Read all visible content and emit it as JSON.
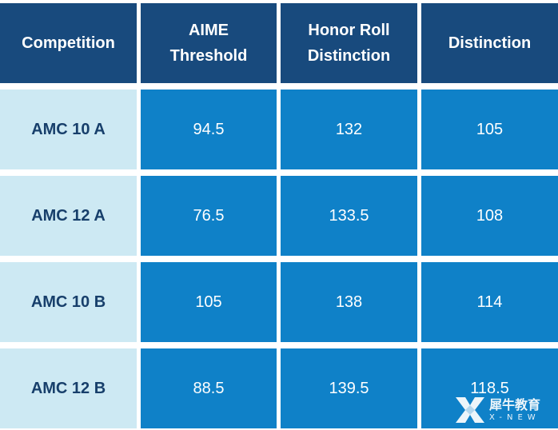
{
  "table": {
    "headers": [
      "Competition",
      "AIME\nThreshold",
      "Honor Roll\nDistinction",
      "Distinction"
    ],
    "rows": [
      {
        "competition": "AMC 10 A",
        "aime_threshold": "94.5",
        "honor_roll_distinction": "132",
        "distinction": "105"
      },
      {
        "competition": "AMC 12 A",
        "aime_threshold": "76.5",
        "honor_roll_distinction": "133.5",
        "distinction": "108"
      },
      {
        "competition": "AMC 10 B",
        "aime_threshold": "105",
        "honor_roll_distinction": "138",
        "distinction": "114"
      },
      {
        "competition": "AMC 12 B",
        "aime_threshold": "88.5",
        "honor_roll_distinction": "139.5",
        "distinction": "118.5"
      }
    ]
  },
  "watermark": {
    "chinese": "犀牛教育",
    "english": "X-NEW",
    "icon": "x-logo-icon"
  },
  "colors": {
    "header_bg": "#184a7d",
    "label_bg": "#cde9f3",
    "value_bg": "#0f81c8",
    "label_text": "#173f6b"
  }
}
